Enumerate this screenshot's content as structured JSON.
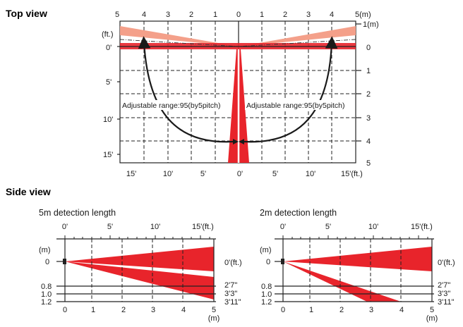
{
  "headings": {
    "top_view": "Top view",
    "side_view": "Side view"
  },
  "top_view": {
    "m_labels": [
      "5",
      "4",
      "3",
      "2",
      "1",
      "0",
      "1",
      "2",
      "3",
      "4",
      "5(m)"
    ],
    "ft_labels": [
      "15'",
      "10'",
      "5'",
      "0'",
      "5'",
      "10'",
      "15'(ft.)"
    ],
    "right_m_labels": [
      "1(m)",
      "0",
      "1",
      "2",
      "3",
      "4",
      "5"
    ],
    "left_ft_unit": "(ft.)",
    "left_ft_labels": [
      "0'",
      "5'",
      "10'",
      "15'"
    ],
    "adjust_left": "Adjustable range:95(by5pitch)",
    "adjust_right": "Adjustable range:95(by5pitch)"
  },
  "side_5m": {
    "title": "5m detection length",
    "ft_labels": [
      "0'",
      "5'",
      "10'",
      "15'(ft.)"
    ],
    "m_unit": "(m)",
    "left_labels": [
      "0",
      "0.8",
      "1.0",
      "1.2"
    ],
    "right_labels": [
      "0'(ft.)",
      "2'7\"",
      "3'3\"",
      "3'11\""
    ],
    "x_labels": [
      "0",
      "1",
      "2",
      "3",
      "4",
      "5"
    ],
    "x_unit": "(m)"
  },
  "side_2m": {
    "title": "2m detection length",
    "ft_labels": [
      "0'",
      "5'",
      "10'",
      "15'(ft.)"
    ],
    "m_unit": "(m)",
    "left_labels": [
      "0",
      "0.8",
      "1.0",
      "1.2"
    ],
    "right_labels": [
      "0'(ft.)",
      "2'7\"",
      "3'3\"",
      "3'11\""
    ],
    "x_labels": [
      "0",
      "1",
      "2",
      "3",
      "4",
      "5"
    ],
    "x_unit": "(m)"
  },
  "colors": {
    "beam_red": "#e8242b",
    "beam_pink": "#f4a08a",
    "ink": "#1a1a1a"
  }
}
